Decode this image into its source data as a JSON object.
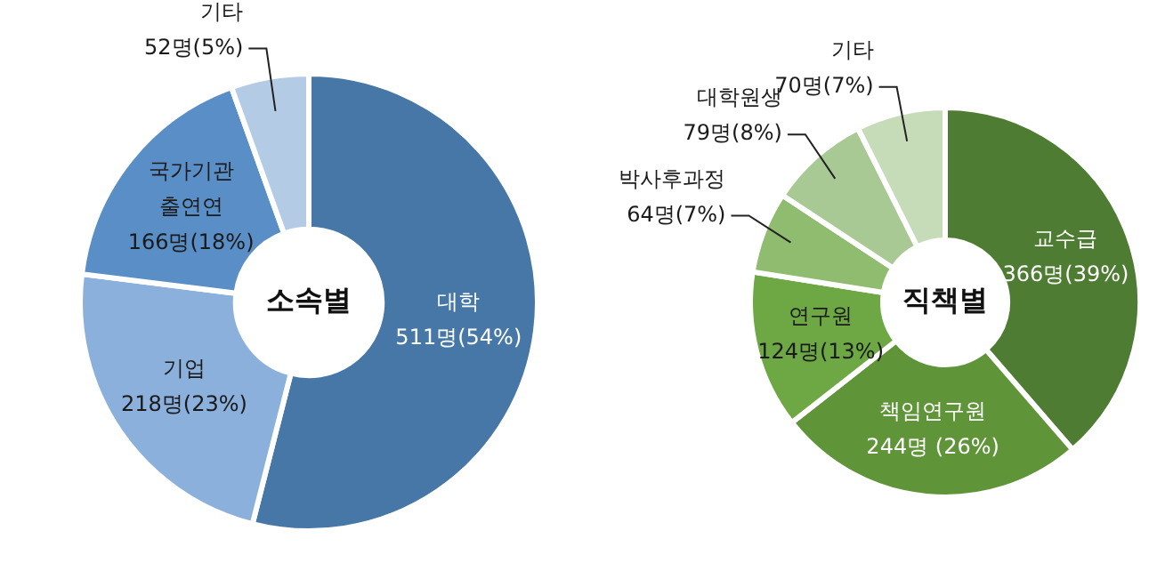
{
  "chart_data": [
    {
      "type": "donut",
      "title": "소속별",
      "categories": [
        "대학",
        "기업",
        "국가기관 출연연",
        "기타"
      ],
      "values": [
        511,
        218,
        166,
        52
      ],
      "value_labels": [
        "511명(54%)",
        "218명(23%)",
        "166명(18%)",
        "52명(5%)"
      ],
      "colors": [
        "#4677a6",
        "#8cb0dc",
        "#5a8ec6",
        "#b4cbe6"
      ]
    },
    {
      "type": "donut",
      "title": "직책별",
      "categories": [
        "교수급",
        "책임연구원",
        "연구원",
        "박사후과정",
        "대학원생",
        "기타"
      ],
      "values": [
        366,
        244,
        124,
        64,
        79,
        70
      ],
      "value_labels": [
        "366명(39%)",
        "244명 (26%)",
        "124명(13%)",
        "64명(7%)",
        "79명(8%)",
        "70명(7%)"
      ],
      "colors": [
        "#4e7c32",
        "#5f9438",
        "#6ea844",
        "#8fbc6e",
        "#a9c994",
        "#c6dcb8"
      ]
    }
  ]
}
